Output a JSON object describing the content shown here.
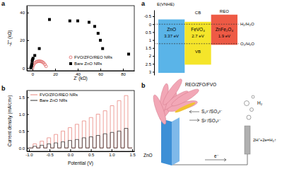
{
  "chart_data": [
    {
      "type": "scatter",
      "panel_label": "a",
      "x_label": "Z' (kΩ)",
      "y_label": "-Z'' (kΩ)",
      "xlim": [
        -5,
        90
      ],
      "ylim": [
        -2,
        45
      ],
      "xticks": [
        0,
        20,
        40,
        60,
        80
      ],
      "yticks": [
        0,
        20,
        40
      ],
      "legend": "lower right",
      "series": [
        {
          "name": "FVO/ZFO/REO NRs",
          "color": "#e06666",
          "marker": "open-circle",
          "x": [
            0,
            0.5,
            1,
            2,
            3,
            4,
            5,
            6,
            7,
            8,
            9,
            10,
            11,
            12
          ],
          "values": [
            0,
            1.5,
            2.5,
            3.5,
            4.2,
            4.6,
            4.8,
            4.9,
            4.8,
            4.6,
            4.2,
            3.5,
            2.5,
            1.2
          ]
        },
        {
          "name": "Bare ZnO NRs",
          "color": "#000000",
          "marker": "square",
          "x": [
            -1.5,
            -1,
            -0.8,
            -0.5,
            -0.3,
            0,
            0.5,
            2,
            6,
            15,
            33,
            40,
            50,
            55,
            58,
            60,
            62,
            85
          ],
          "values": [
            0,
            1,
            2,
            3,
            5,
            6,
            7,
            9,
            14,
            35,
            34,
            34,
            33,
            30,
            25,
            20,
            14,
            10
          ]
        }
      ]
    },
    {
      "type": "line",
      "panel_label": "b",
      "x_label": "Potential (V)",
      "y_label": "Current density (mA/cm²)",
      "xlim": [
        -1.05,
        1.55
      ],
      "ylim": [
        -0.1,
        1.7
      ],
      "xticks": [
        {
          "value": -1,
          "label": "-1.0"
        },
        {
          "value": -0.5,
          "label": "-0.5"
        },
        {
          "value": 0,
          "label": "0.0"
        },
        {
          "value": 0.5,
          "label": "0.5"
        },
        {
          "value": 1,
          "label": "1.0"
        },
        {
          "value": 1.5,
          "label": "1.5"
        }
      ],
      "yticks": [
        {
          "value": 0,
          "label": "0.0"
        },
        {
          "value": 0.5,
          "label": "0.5"
        },
        {
          "value": 1,
          "label": "1.0"
        },
        {
          "value": 1.5,
          "label": "1.5"
        }
      ],
      "legend": "upper left",
      "x": [
        -1.0,
        -0.9,
        -0.9,
        -0.815,
        -0.815,
        -0.73,
        -0.73,
        -0.645,
        -0.645,
        -0.56,
        -0.56,
        -0.475,
        -0.475,
        -0.39,
        -0.39,
        -0.305,
        -0.305,
        -0.22,
        -0.22,
        -0.135,
        -0.135,
        -0.05,
        -0.05,
        0.035,
        0.035,
        0.12,
        0.12,
        0.205,
        0.205,
        0.29,
        0.29,
        0.375,
        0.375,
        0.46,
        0.46,
        0.545,
        0.545,
        0.63,
        0.63,
        0.715,
        0.715,
        0.8,
        0.8,
        0.885,
        0.885,
        0.97,
        0.97,
        1.055,
        1.055,
        1.14,
        1.14,
        1.225,
        1.225,
        1.31,
        1.31,
        1.395,
        1.395,
        1.5
      ],
      "series": [
        {
          "name": "FVO/ZFO/REO NRs",
          "color": "#e8877f",
          "values": [
            0,
            0,
            0.12,
            0.12,
            0,
            0,
            0.2,
            0.2,
            0,
            0,
            0.3,
            0.3,
            0,
            0,
            0.4,
            0.4,
            0,
            0,
            0.5,
            0.5,
            0,
            0,
            0.6,
            0.6,
            0,
            0,
            0.7,
            0.7,
            0,
            0,
            0.8,
            0.8,
            0,
            0,
            0.9,
            0.9,
            0,
            0,
            1.0,
            1.0,
            0,
            0,
            1.1,
            1.1,
            0,
            0,
            1.25,
            1.25,
            0,
            0,
            1.4,
            1.4,
            0,
            0,
            1.55,
            1.55,
            0,
            0
          ]
        },
        {
          "name": "Bare ZnO NRs",
          "color": "#333333",
          "values": [
            0,
            0,
            0.05,
            0.05,
            0,
            0,
            0.08,
            0.08,
            0,
            0,
            0.12,
            0.12,
            0,
            0,
            0.15,
            0.15,
            0,
            0,
            0.18,
            0.18,
            0,
            0,
            0.22,
            0.22,
            0,
            0,
            0.25,
            0.25,
            0,
            0,
            0.3,
            0.3,
            0,
            0,
            0.33,
            0.33,
            0,
            0,
            0.37,
            0.37,
            0,
            0,
            0.42,
            0.42,
            0,
            0,
            0.46,
            0.46,
            0,
            0,
            0.5,
            0.5,
            0,
            0,
            0.58,
            0.58,
            0,
            0
          ]
        }
      ]
    },
    {
      "type": "band_diagram",
      "panel_label": "a",
      "y_label": "E(VNHE)",
      "ylim": [
        -0.9,
        3.2
      ],
      "yticks": [
        -0.5,
        0,
        0.5,
        1,
        1.5,
        2,
        2.5,
        3
      ],
      "categories": [
        "ZnO",
        "FeVO₄",
        "ZnFe₂O₄"
      ],
      "cb": [
        -0.3,
        -0.15,
        -0.6
      ],
      "vb": [
        3.07,
        2.55,
        1.3
      ],
      "gap_labels": [
        "3.37 eV",
        "2.7 eV",
        "1.9 eV"
      ],
      "colors": [
        "#5ab4e8",
        "#f5e52a",
        "#ee5a45"
      ],
      "cb_label": "CB",
      "vb_label": "VB",
      "top_label": "REO",
      "levels": [
        {
          "value": 0,
          "label": "H₂/H₂O"
        },
        {
          "value": 1.23,
          "label": "O₂/H₂O"
        }
      ]
    }
  ],
  "diagram": {
    "panel_label": "b",
    "structure_label": "REO/ZFO/FVO",
    "oxidant": "S₂²⁻/SO₄²⁻",
    "reductant": "S²⁻/SO₃²⁻",
    "gas": "H₂",
    "reaction": "2H⁺+2e=H₂↑",
    "substrate": "ZnO",
    "electron": "e⁻"
  }
}
